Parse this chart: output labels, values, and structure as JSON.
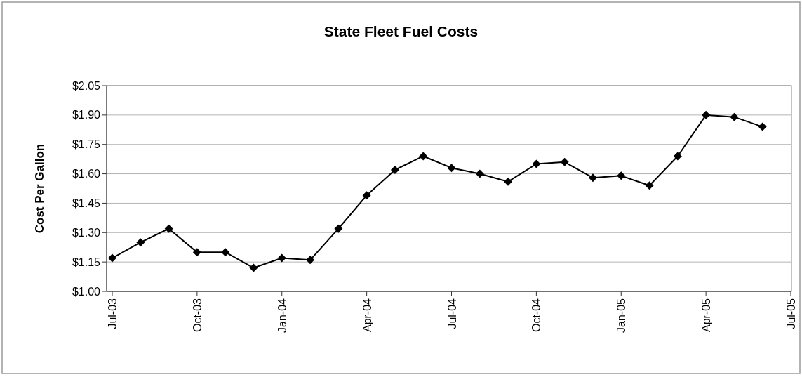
{
  "chart_data": {
    "type": "line",
    "title": "State Fleet Fuel Costs",
    "ylabel": "Cost Per Gallon",
    "categories": [
      "Jul-03",
      null,
      null,
      "Oct-03",
      null,
      null,
      "Jan-04",
      null,
      null,
      "Apr-04",
      null,
      null,
      "Jul-04",
      null,
      null,
      "Oct-04",
      null,
      null,
      "Jan-05",
      null,
      null,
      "Apr-05",
      null,
      null,
      "Jul-05"
    ],
    "series": [
      {
        "color": "#000000",
        "values": [
          1.17,
          1.25,
          1.32,
          1.2,
          1.2,
          1.12,
          1.17,
          1.16,
          1.32,
          1.49,
          1.62,
          1.69,
          1.63,
          1.6,
          1.56,
          1.65,
          1.66,
          1.58,
          1.59,
          1.54,
          1.69,
          1.9,
          1.89,
          1.84,
          null
        ]
      }
    ],
    "ylim": [
      1.0,
      2.05
    ],
    "yticks": [
      {
        "value": 1.0,
        "label": "$1.00"
      },
      {
        "value": 1.15,
        "label": "$1.15"
      },
      {
        "value": 1.3,
        "label": "$1.30"
      },
      {
        "value": 1.45,
        "label": "$1.45"
      },
      {
        "value": 1.6,
        "label": "$1.60"
      },
      {
        "value": 1.75,
        "label": "$1.75"
      },
      {
        "value": 1.9,
        "label": "$1.90"
      },
      {
        "value": 2.05,
        "label": "$2.05"
      }
    ],
    "grid": "y",
    "marker": "diamond",
    "line_style": "solid"
  }
}
